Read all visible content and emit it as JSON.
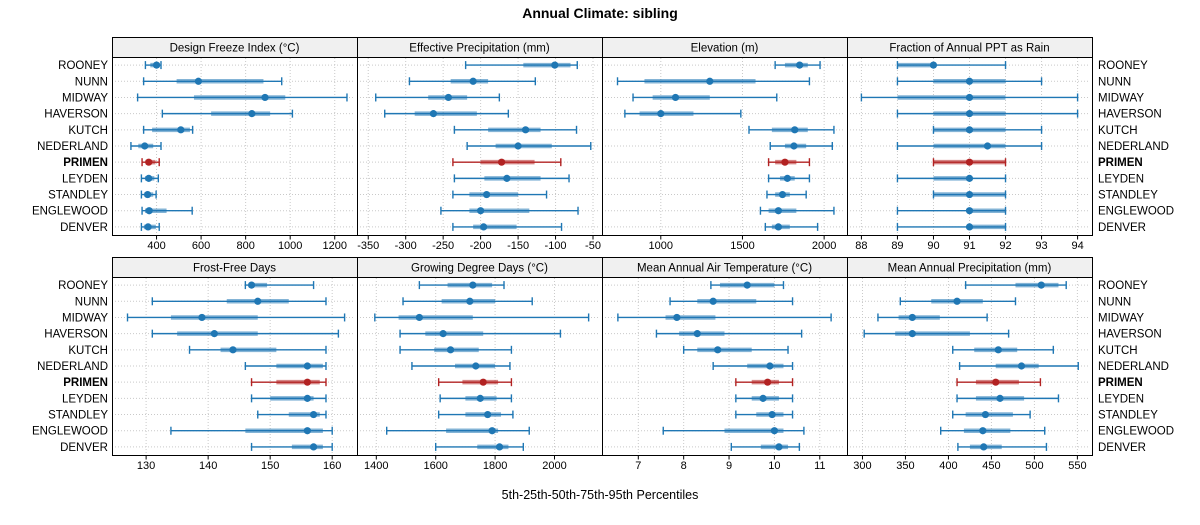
{
  "title": "Annual Climate: sibling",
  "caption": "5th-25th-50th-75th-95th Percentiles",
  "stations": [
    "ROONEY",
    "NUNN",
    "MIDWAY",
    "HAVERSON",
    "KUTCH",
    "NEDERLAND",
    "PRIMEN",
    "LEYDEN",
    "STANDLEY",
    "ENGLEWOOD",
    "DENVER"
  ],
  "highlight_station": "PRIMEN",
  "colors": {
    "series": "#1f77b4",
    "highlight": "#b22222",
    "header_bg": "#f0f0f0",
    "grid": "#c9c9c9",
    "panel_border": "#000000"
  },
  "chart_data": {
    "type": "dot-interval",
    "percentile_labels": [
      "5th",
      "25th",
      "50th",
      "75th",
      "95th"
    ],
    "panels": [
      {
        "title": "Design Freeze Index (°C)",
        "row": 0,
        "col": 0,
        "xlim": [
          200,
          1300
        ],
        "ticks": [
          400,
          600,
          800,
          1000,
          1200
        ],
        "values": {
          "ROONEY": [
            350,
            372,
            400,
            415,
            420
          ],
          "NUNN": [
            342,
            490,
            588,
            880,
            962
          ],
          "MIDWAY": [
            315,
            568,
            887,
            978,
            1255
          ],
          "HAVERSON": [
            426,
            645,
            828,
            910,
            1010
          ],
          "KUTCH": [
            342,
            380,
            509,
            550,
            562
          ],
          "NEDERLAND": [
            285,
            318,
            347,
            385,
            420
          ],
          "PRIMEN": [
            335,
            350,
            365,
            395,
            412
          ],
          "LEYDEN": [
            332,
            348,
            365,
            390,
            408
          ],
          "STANDLEY": [
            332,
            345,
            360,
            385,
            398
          ],
          "ENGLEWOOD": [
            335,
            348,
            367,
            445,
            560
          ],
          "DENVER": [
            332,
            343,
            362,
            397,
            412
          ]
        }
      },
      {
        "title": "Effective Precipitation (mm)",
        "row": 0,
        "col": 1,
        "xlim": [
          -365,
          -38
        ],
        "ticks": [
          -350,
          -300,
          -250,
          -200,
          -150,
          -100,
          -50
        ],
        "values": {
          "ROONEY": [
            -220,
            -143,
            -101,
            -80,
            -71
          ],
          "NUNN": [
            -295,
            -240,
            -210,
            -190,
            -127
          ],
          "MIDWAY": [
            -340,
            -270,
            -243,
            -218,
            -175
          ],
          "HAVERSON": [
            -328,
            -288,
            -263,
            -205,
            -163
          ],
          "KUTCH": [
            -235,
            -190,
            -140,
            -120,
            -72
          ],
          "NEDERLAND": [
            -218,
            -180,
            -150,
            -105,
            -53
          ],
          "PRIMEN": [
            -237,
            -200,
            -172,
            -128,
            -93
          ],
          "LEYDEN": [
            -235,
            -195,
            -165,
            -120,
            -82
          ],
          "STANDLEY": [
            -237,
            -215,
            -192,
            -150,
            -112
          ],
          "ENGLEWOOD": [
            -253,
            -215,
            -200,
            -135,
            -70
          ],
          "DENVER": [
            -237,
            -210,
            -196,
            -152,
            -92
          ]
        }
      },
      {
        "title": "Elevation (m)",
        "row": 0,
        "col": 2,
        "xlim": [
          640,
          2140
        ],
        "ticks": [
          1000,
          1500,
          2000
        ],
        "values": {
          "ROONEY": [
            1700,
            1760,
            1850,
            1900,
            1975
          ],
          "NUNN": [
            735,
            900,
            1300,
            1580,
            1910
          ],
          "MIDWAY": [
            830,
            950,
            1090,
            1300,
            1710
          ],
          "HAVERSON": [
            780,
            870,
            1000,
            1200,
            1490
          ],
          "KUTCH": [
            1540,
            1680,
            1820,
            1900,
            2060
          ],
          "NEDERLAND": [
            1670,
            1760,
            1815,
            1890,
            2050
          ],
          "PRIMEN": [
            1660,
            1700,
            1760,
            1830,
            1910
          ],
          "LEYDEN": [
            1660,
            1730,
            1775,
            1820,
            1910
          ],
          "STANDLEY": [
            1650,
            1700,
            1745,
            1790,
            1890
          ],
          "ENGLEWOOD": [
            1610,
            1660,
            1720,
            1830,
            2060
          ],
          "DENVER": [
            1640,
            1680,
            1720,
            1790,
            1960
          ]
        }
      },
      {
        "title": "Fraction of Annual PPT as Rain",
        "row": 0,
        "col": 3,
        "xlim": [
          87.6,
          94.4
        ],
        "ticks": [
          88,
          89,
          90,
          91,
          92,
          93,
          94
        ],
        "values": {
          "ROONEY": [
            89,
            89,
            90,
            90,
            92
          ],
          "NUNN": [
            89,
            90,
            91,
            92,
            93
          ],
          "MIDWAY": [
            88,
            89,
            91,
            92,
            94
          ],
          "HAVERSON": [
            89,
            90,
            91,
            92,
            94
          ],
          "KUTCH": [
            90,
            90,
            91,
            92,
            93
          ],
          "NEDERLAND": [
            89,
            90,
            91.5,
            92,
            93
          ],
          "PRIMEN": [
            90,
            90,
            91,
            92,
            92
          ],
          "LEYDEN": [
            89,
            90,
            91,
            91,
            92
          ],
          "STANDLEY": [
            90,
            90,
            91,
            92,
            92
          ],
          "ENGLEWOOD": [
            89,
            91,
            91,
            92,
            92
          ],
          "DENVER": [
            89,
            91,
            91,
            92,
            92
          ]
        }
      },
      {
        "title": "Frost-Free Days",
        "row": 1,
        "col": 0,
        "xlim": [
          124.5,
          164
        ],
        "ticks": [
          130,
          140,
          150,
          160
        ],
        "values": {
          "ROONEY": [
            146,
            146.5,
            147,
            149.5,
            157
          ],
          "NUNN": [
            131,
            143,
            148,
            153,
            159
          ],
          "MIDWAY": [
            127,
            134,
            139,
            148,
            162
          ],
          "HAVERSON": [
            131,
            135,
            141,
            148,
            161
          ],
          "KUTCH": [
            137,
            142,
            144,
            151,
            159
          ],
          "NEDERLAND": [
            146,
            151,
            156,
            158.5,
            159
          ],
          "PRIMEN": [
            147,
            151,
            156,
            158,
            159
          ],
          "LEYDEN": [
            147,
            150,
            156,
            157,
            159
          ],
          "STANDLEY": [
            148,
            153,
            157,
            158,
            159
          ],
          "ENGLEWOOD": [
            134,
            146,
            156,
            158.5,
            160
          ],
          "DENVER": [
            147,
            153.5,
            157,
            158.5,
            160
          ]
        }
      },
      {
        "title": "Growing Degree Days (°C)",
        "row": 1,
        "col": 1,
        "xlim": [
          1335,
          2160
        ],
        "ticks": [
          1400,
          1600,
          1800,
          2000
        ],
        "values": {
          "ROONEY": [
            1545,
            1640,
            1725,
            1790,
            1830
          ],
          "NUNN": [
            1490,
            1620,
            1715,
            1800,
            1925
          ],
          "MIDWAY": [
            1395,
            1475,
            1545,
            1725,
            2115
          ],
          "HAVERSON": [
            1480,
            1565,
            1625,
            1760,
            2020
          ],
          "KUTCH": [
            1480,
            1595,
            1650,
            1745,
            1855
          ],
          "NEDERLAND": [
            1520,
            1665,
            1735,
            1800,
            1850
          ],
          "PRIMEN": [
            1610,
            1690,
            1760,
            1810,
            1855
          ],
          "LEYDEN": [
            1615,
            1700,
            1750,
            1805,
            1855
          ],
          "STANDLEY": [
            1610,
            1700,
            1775,
            1820,
            1860
          ],
          "ENGLEWOOD": [
            1435,
            1635,
            1790,
            1810,
            1915
          ],
          "DENVER": [
            1600,
            1740,
            1815,
            1845,
            1895
          ]
        }
      },
      {
        "title": "Mean Annual Air Temperature (°C)",
        "row": 1,
        "col": 2,
        "xlim": [
          6.2,
          11.6
        ],
        "ticks": [
          7,
          8,
          9,
          10,
          11
        ],
        "values": {
          "ROONEY": [
            8.6,
            8.8,
            9.4,
            10.0,
            10.2
          ],
          "NUNN": [
            7.7,
            8.3,
            8.65,
            9.6,
            10.4
          ],
          "MIDWAY": [
            6.55,
            7.6,
            7.85,
            8.7,
            11.25
          ],
          "HAVERSON": [
            7.4,
            7.9,
            8.3,
            8.9,
            10.6
          ],
          "KUTCH": [
            8.0,
            8.3,
            8.75,
            9.5,
            10.3
          ],
          "NEDERLAND": [
            8.65,
            9.4,
            9.9,
            10.2,
            10.4
          ],
          "PRIMEN": [
            9.15,
            9.5,
            9.85,
            10.1,
            10.4
          ],
          "LEYDEN": [
            9.15,
            9.5,
            9.75,
            10.1,
            10.4
          ],
          "STANDLEY": [
            9.15,
            9.6,
            9.95,
            10.2,
            10.4
          ],
          "ENGLEWOOD": [
            7.55,
            8.9,
            10.0,
            10.2,
            10.65
          ],
          "DENVER": [
            9.05,
            9.7,
            10.1,
            10.3,
            10.55
          ]
        }
      },
      {
        "title": "Mean Annual Precipitation (mm)",
        "row": 1,
        "col": 3,
        "xlim": [
          282,
          567
        ],
        "ticks": [
          300,
          350,
          400,
          450,
          500,
          550
        ],
        "values": {
          "ROONEY": [
            420,
            478,
            508,
            528,
            537
          ],
          "NUNN": [
            344,
            380,
            410,
            440,
            478
          ],
          "MIDWAY": [
            318,
            342,
            358,
            390,
            445
          ],
          "HAVERSON": [
            302,
            338,
            358,
            425,
            470
          ],
          "KUTCH": [
            405,
            430,
            458,
            480,
            522
          ],
          "NEDERLAND": [
            413,
            455,
            485,
            505,
            551
          ],
          "PRIMEN": [
            410,
            432,
            455,
            482,
            507
          ],
          "LEYDEN": [
            410,
            432,
            460,
            488,
            528
          ],
          "STANDLEY": [
            405,
            420,
            443,
            475,
            495
          ],
          "ENGLEWOOD": [
            391,
            418,
            440,
            472,
            512
          ],
          "DENVER": [
            411,
            425,
            441,
            462,
            514
          ]
        }
      }
    ]
  }
}
